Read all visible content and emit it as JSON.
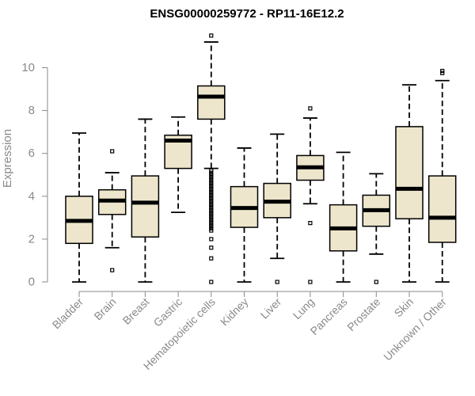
{
  "chart_data": {
    "type": "boxplot",
    "title": "ENSG00000259772 - RP11-16E12.2",
    "xlabel": "",
    "ylabel": "Expression",
    "ylim": [
      0,
      10.5
    ],
    "yticks": [
      0,
      2,
      4,
      6,
      8,
      10
    ],
    "grid": false,
    "colors": {
      "box_fill": "#ede6cc",
      "box_stroke": "#000000",
      "axis": "#8a8a8a"
    },
    "categories": [
      "Bladder",
      "Brain",
      "Breast",
      "Gastric",
      "Hematopoietic cells",
      "Kidney",
      "Liver",
      "Lung",
      "Pancreas",
      "Prostate",
      "Skin",
      "Unknown / Other"
    ],
    "boxes": [
      {
        "category": "Bladder",
        "whisker_low": 0.0,
        "q1": 1.8,
        "median": 2.85,
        "q3": 4.0,
        "whisker_high": 6.95,
        "outliers": []
      },
      {
        "category": "Brain",
        "whisker_low": 1.6,
        "q1": 3.15,
        "median": 3.8,
        "q3": 4.3,
        "whisker_high": 5.1,
        "outliers": [
          0.55,
          6.1
        ]
      },
      {
        "category": "Breast",
        "whisker_low": 0.0,
        "q1": 2.1,
        "median": 3.7,
        "q3": 4.95,
        "whisker_high": 7.6,
        "outliers": []
      },
      {
        "category": "Gastric",
        "whisker_low": 3.25,
        "q1": 5.3,
        "median": 6.6,
        "q3": 6.85,
        "whisker_high": 7.7,
        "outliers": []
      },
      {
        "category": "Hematopoietic cells",
        "whisker_low": 5.3,
        "q1": 7.6,
        "median": 8.65,
        "q3": 9.15,
        "whisker_high": 11.2,
        "outliers": [
          11.5,
          5.2,
          5.1,
          5.0,
          4.9,
          4.8,
          4.7,
          4.6,
          4.5,
          4.4,
          4.3,
          4.2,
          4.1,
          4.0,
          3.9,
          3.8,
          3.7,
          3.6,
          3.5,
          3.4,
          3.3,
          3.2,
          3.1,
          3.0,
          2.9,
          2.8,
          2.7,
          2.6,
          2.5,
          2.4,
          2.0,
          1.6,
          1.1,
          0.0
        ]
      },
      {
        "category": "Kidney",
        "whisker_low": 0.0,
        "q1": 2.55,
        "median": 3.45,
        "q3": 4.45,
        "whisker_high": 6.25,
        "outliers": []
      },
      {
        "category": "Liver",
        "whisker_low": 1.1,
        "q1": 3.0,
        "median": 3.75,
        "q3": 4.6,
        "whisker_high": 6.9,
        "outliers": [
          0.0
        ]
      },
      {
        "category": "Lung",
        "whisker_low": 3.65,
        "q1": 4.75,
        "median": 5.35,
        "q3": 5.9,
        "whisker_high": 7.65,
        "outliers": [
          8.1,
          2.75,
          0.0
        ]
      },
      {
        "category": "Pancreas",
        "whisker_low": 0.0,
        "q1": 1.45,
        "median": 2.5,
        "q3": 3.6,
        "whisker_high": 6.05,
        "outliers": []
      },
      {
        "category": "Prostate",
        "whisker_low": 1.3,
        "q1": 2.6,
        "median": 3.35,
        "q3": 4.05,
        "whisker_high": 5.05,
        "outliers": [
          0.0
        ]
      },
      {
        "category": "Skin",
        "whisker_low": 0.0,
        "q1": 2.95,
        "median": 4.35,
        "q3": 7.25,
        "whisker_high": 9.2,
        "outliers": []
      },
      {
        "category": "Unknown / Other",
        "whisker_low": 0.0,
        "q1": 1.85,
        "median": 3.0,
        "q3": 4.95,
        "whisker_high": 9.4,
        "outliers": [
          9.75,
          9.85
        ]
      }
    ]
  }
}
